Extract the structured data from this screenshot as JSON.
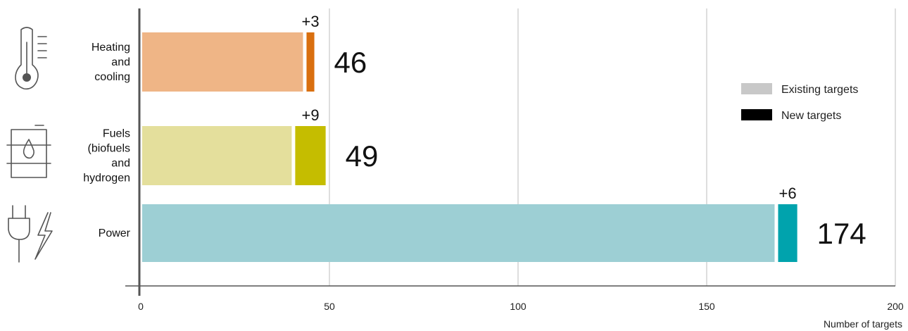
{
  "chart_data": {
    "type": "bar",
    "orientation": "horizontal",
    "stacked": true,
    "categories": [
      {
        "label_lines": [
          "Heating",
          "and",
          "cooling"
        ],
        "icon": "thermometer-icon"
      },
      {
        "label_lines": [
          "Fuels",
          "(biofuels",
          "and",
          "hydrogen"
        ],
        "icon": "fuel-barrel-icon"
      },
      {
        "label_lines": [
          "Power"
        ],
        "icon": "power-plug-lightning-icon"
      }
    ],
    "series": [
      {
        "name": "Existing targets",
        "values": [
          43,
          40,
          168
        ]
      },
      {
        "name": "New targets",
        "values": [
          3,
          9,
          6
        ]
      }
    ],
    "totals": [
      "46",
      "49",
      "174"
    ],
    "additions": [
      "+3",
      "+9",
      "+6"
    ],
    "colors": {
      "existing": [
        "#efb586",
        "#e4df9c",
        "#9dcfd4"
      ],
      "new": [
        "#d96f0f",
        "#c5bd00",
        "#00a3ad"
      ],
      "legend_existing": "#c8c8c8",
      "legend_new": "#000000",
      "grid": "#bdbdbd",
      "axis": "#555555"
    },
    "xlim": [
      0,
      200
    ],
    "xticks": [
      0,
      50,
      100,
      150,
      200
    ],
    "xlabel": "Number of targets",
    "grid": true,
    "legend_position": "right"
  }
}
